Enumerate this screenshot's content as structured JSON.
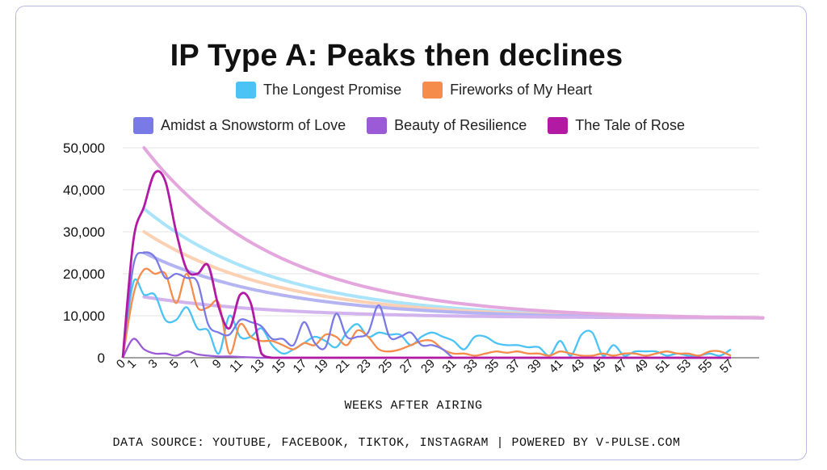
{
  "chart_data": {
    "type": "line",
    "title": "IP Type A: Peaks then declines",
    "xlabel": "WEEKS AFTER AIRING",
    "ylabel": "",
    "ylim": [
      0,
      50000
    ],
    "yticks": [
      "0",
      "10,000",
      "20,000",
      "30,000",
      "40,000",
      "50,000"
    ],
    "xlim": [
      0,
      57
    ],
    "x_tick_labels": [
      "0",
      "1",
      "3",
      "5",
      "7",
      "9",
      "11",
      "13",
      "15",
      "17",
      "19",
      "21",
      "23",
      "25",
      "27",
      "29",
      "31",
      "33",
      "35",
      "37",
      "39",
      "41",
      "43",
      "45",
      "47",
      "49",
      "51",
      "53",
      "55",
      "57"
    ],
    "series": [
      {
        "name": "The Longest Promise",
        "color": "#4cc3f5",
        "points": [
          [
            0,
            0
          ],
          [
            1,
            18000
          ],
          [
            2,
            15000
          ],
          [
            3,
            15000
          ],
          [
            4,
            9000
          ],
          [
            5,
            9000
          ],
          [
            6,
            12000
          ],
          [
            7,
            7000
          ],
          [
            8,
            6500
          ],
          [
            9,
            1000
          ],
          [
            10,
            10000
          ],
          [
            11,
            5000
          ],
          [
            12,
            5000
          ],
          [
            13,
            7000
          ],
          [
            14,
            3000
          ],
          [
            15,
            1000
          ],
          [
            16,
            2000
          ],
          [
            17,
            3500
          ],
          [
            18,
            5000
          ],
          [
            19,
            4000
          ],
          [
            20,
            2500
          ],
          [
            21,
            6000
          ],
          [
            22,
            8000
          ],
          [
            23,
            5000
          ],
          [
            24,
            6000
          ],
          [
            25,
            5500
          ],
          [
            26,
            5500
          ],
          [
            27,
            3000
          ],
          [
            28,
            5000
          ],
          [
            29,
            6000
          ],
          [
            30,
            5000
          ],
          [
            31,
            4000
          ],
          [
            32,
            2000
          ],
          [
            33,
            5000
          ],
          [
            34,
            5000
          ],
          [
            35,
            3500
          ],
          [
            36,
            3000
          ],
          [
            37,
            3000
          ],
          [
            38,
            2500
          ],
          [
            39,
            2500
          ],
          [
            40,
            500
          ],
          [
            41,
            4000
          ],
          [
            42,
            500
          ],
          [
            43,
            5500
          ],
          [
            44,
            6000
          ],
          [
            45,
            500
          ],
          [
            46,
            3000
          ],
          [
            47,
            500
          ],
          [
            48,
            1500
          ],
          [
            49,
            1500
          ],
          [
            50,
            1500
          ],
          [
            51,
            500
          ],
          [
            52,
            1000
          ],
          [
            53,
            500
          ],
          [
            54,
            500
          ],
          [
            55,
            1000
          ],
          [
            56,
            500
          ],
          [
            57,
            2000
          ]
        ]
      },
      {
        "name": "Fireworks of My Heart",
        "color": "#f58c4c",
        "points": [
          [
            0,
            0
          ],
          [
            1,
            15000
          ],
          [
            2,
            21000
          ],
          [
            3,
            20000
          ],
          [
            4,
            20000
          ],
          [
            5,
            13000
          ],
          [
            6,
            20000
          ],
          [
            7,
            12000
          ],
          [
            8,
            12000
          ],
          [
            9,
            13000
          ],
          [
            10,
            1000
          ],
          [
            11,
            8000
          ],
          [
            12,
            5000
          ],
          [
            13,
            4000
          ],
          [
            14,
            4000
          ],
          [
            15,
            3000
          ],
          [
            16,
            2000
          ],
          [
            17,
            3500
          ],
          [
            18,
            3000
          ],
          [
            19,
            5500
          ],
          [
            20,
            5000
          ],
          [
            21,
            3000
          ],
          [
            22,
            6500
          ],
          [
            23,
            5000
          ],
          [
            24,
            2000
          ],
          [
            25,
            1500
          ],
          [
            26,
            2000
          ],
          [
            27,
            3000
          ],
          [
            28,
            4000
          ],
          [
            29,
            4000
          ],
          [
            30,
            2000
          ],
          [
            31,
            1000
          ],
          [
            32,
            1000
          ],
          [
            33,
            500
          ],
          [
            34,
            1000
          ],
          [
            35,
            1500
          ],
          [
            36,
            1200
          ],
          [
            37,
            1500
          ],
          [
            38,
            1000
          ],
          [
            39,
            1000
          ],
          [
            40,
            500
          ],
          [
            41,
            1500
          ],
          [
            42,
            1000
          ],
          [
            43,
            500
          ],
          [
            44,
            500
          ],
          [
            45,
            1000
          ],
          [
            46,
            500
          ],
          [
            47,
            1000
          ],
          [
            48,
            1000
          ],
          [
            49,
            500
          ],
          [
            50,
            1000
          ],
          [
            51,
            1500
          ],
          [
            52,
            1000
          ],
          [
            53,
            1000
          ],
          [
            54,
            500
          ],
          [
            55,
            1500
          ],
          [
            56,
            1500
          ],
          [
            57,
            500
          ]
        ]
      },
      {
        "name": "Amidst a Snowstorm of Love",
        "color": "#7a7ae6",
        "points": [
          [
            0,
            0
          ],
          [
            1,
            22000
          ],
          [
            2,
            25000
          ],
          [
            3,
            24000
          ],
          [
            4,
            19000
          ],
          [
            5,
            20000
          ],
          [
            6,
            19000
          ],
          [
            7,
            18000
          ],
          [
            8,
            8000
          ],
          [
            9,
            6000
          ],
          [
            10,
            5500
          ],
          [
            11,
            9000
          ],
          [
            12,
            8500
          ],
          [
            13,
            7500
          ],
          [
            14,
            4500
          ],
          [
            15,
            4500
          ],
          [
            16,
            3000
          ],
          [
            17,
            8500
          ],
          [
            18,
            3500
          ],
          [
            19,
            2500
          ],
          [
            20,
            10500
          ],
          [
            21,
            5000
          ],
          [
            22,
            5000
          ],
          [
            23,
            6000
          ],
          [
            24,
            12500
          ],
          [
            25,
            5000
          ],
          [
            26,
            5000
          ],
          [
            27,
            6000
          ],
          [
            28,
            3000
          ],
          [
            29,
            3000
          ],
          [
            30,
            2000
          ],
          [
            31,
            0
          ],
          [
            32,
            0
          ],
          [
            33,
            0
          ],
          [
            34,
            0
          ],
          [
            35,
            0
          ],
          [
            36,
            0
          ],
          [
            37,
            0
          ],
          [
            38,
            0
          ],
          [
            39,
            0
          ],
          [
            40,
            0
          ],
          [
            41,
            0
          ],
          [
            42,
            0
          ],
          [
            43,
            0
          ],
          [
            44,
            0
          ],
          [
            45,
            0
          ],
          [
            46,
            0
          ],
          [
            47,
            0
          ],
          [
            48,
            0
          ],
          [
            49,
            0
          ],
          [
            50,
            0
          ],
          [
            51,
            0
          ],
          [
            52,
            0
          ],
          [
            53,
            0
          ],
          [
            54,
            0
          ],
          [
            55,
            0
          ],
          [
            56,
            0
          ],
          [
            57,
            0
          ]
        ]
      },
      {
        "name": "Beauty of Resilience",
        "color": "#9b5bd6",
        "points": [
          [
            0,
            0
          ],
          [
            1,
            4500
          ],
          [
            2,
            2000
          ],
          [
            3,
            1000
          ],
          [
            4,
            1000
          ],
          [
            5,
            500
          ],
          [
            6,
            1500
          ],
          [
            7,
            800
          ],
          [
            8,
            500
          ],
          [
            9,
            300
          ],
          [
            10,
            300
          ],
          [
            11,
            200
          ],
          [
            12,
            100
          ],
          [
            13,
            0
          ],
          [
            14,
            0
          ],
          [
            15,
            0
          ],
          [
            16,
            0
          ],
          [
            17,
            0
          ],
          [
            18,
            0
          ],
          [
            19,
            0
          ],
          [
            20,
            0
          ],
          [
            21,
            0
          ],
          [
            22,
            0
          ],
          [
            23,
            0
          ],
          [
            24,
            0
          ],
          [
            25,
            0
          ],
          [
            26,
            0
          ],
          [
            27,
            0
          ],
          [
            28,
            0
          ],
          [
            29,
            0
          ],
          [
            30,
            0
          ],
          [
            31,
            0
          ],
          [
            32,
            0
          ],
          [
            33,
            0
          ],
          [
            34,
            0
          ],
          [
            35,
            0
          ],
          [
            36,
            0
          ],
          [
            37,
            0
          ],
          [
            38,
            0
          ],
          [
            39,
            0
          ],
          [
            40,
            0
          ],
          [
            41,
            0
          ],
          [
            42,
            0
          ],
          [
            43,
            0
          ],
          [
            44,
            0
          ],
          [
            45,
            0
          ],
          [
            46,
            0
          ],
          [
            47,
            0
          ],
          [
            48,
            0
          ],
          [
            49,
            0
          ],
          [
            50,
            0
          ],
          [
            51,
            0
          ],
          [
            52,
            0
          ],
          [
            53,
            0
          ],
          [
            54,
            0
          ],
          [
            55,
            0
          ],
          [
            56,
            0
          ],
          [
            57,
            0
          ]
        ]
      },
      {
        "name": "The Tale of Rose",
        "color": "#b21aa3",
        "points": [
          [
            0,
            0
          ],
          [
            1,
            28000
          ],
          [
            2,
            36000
          ],
          [
            3,
            44000
          ],
          [
            4,
            42000
          ],
          [
            5,
            30000
          ],
          [
            6,
            21000
          ],
          [
            7,
            20000
          ],
          [
            8,
            22000
          ],
          [
            9,
            12000
          ],
          [
            10,
            7000
          ],
          [
            11,
            15000
          ],
          [
            12,
            13000
          ],
          [
            13,
            1000
          ],
          [
            14,
            0
          ],
          [
            15,
            0
          ],
          [
            16,
            0
          ],
          [
            17,
            0
          ],
          [
            18,
            0
          ],
          [
            19,
            0
          ],
          [
            20,
            0
          ],
          [
            21,
            0
          ],
          [
            22,
            0
          ],
          [
            23,
            0
          ],
          [
            24,
            0
          ],
          [
            25,
            0
          ],
          [
            26,
            0
          ],
          [
            27,
            0
          ],
          [
            28,
            0
          ],
          [
            29,
            0
          ],
          [
            30,
            0
          ],
          [
            31,
            0
          ],
          [
            32,
            0
          ],
          [
            33,
            0
          ],
          [
            34,
            0
          ],
          [
            35,
            0
          ],
          [
            36,
            0
          ],
          [
            37,
            0
          ],
          [
            38,
            0
          ],
          [
            39,
            0
          ],
          [
            40,
            0
          ],
          [
            41,
            0
          ],
          [
            42,
            0
          ],
          [
            43,
            0
          ],
          [
            44,
            0
          ],
          [
            45,
            0
          ],
          [
            46,
            0
          ],
          [
            47,
            0
          ],
          [
            48,
            0
          ],
          [
            49,
            0
          ],
          [
            50,
            0
          ],
          [
            51,
            0
          ],
          [
            52,
            0
          ],
          [
            53,
            0
          ],
          [
            54,
            0
          ],
          [
            55,
            0
          ],
          [
            56,
            0
          ],
          [
            57,
            0
          ]
        ]
      }
    ],
    "trendlines": [
      {
        "series": "The Longest Promise",
        "color": "#a9e4fb",
        "start_x": 2,
        "start_y": 35500,
        "end_x": 60,
        "end_y": 9500
      },
      {
        "series": "Fireworks of My Heart",
        "color": "#fbd0b3",
        "start_x": 2,
        "start_y": 30000,
        "end_x": 60,
        "end_y": 9500
      },
      {
        "series": "Amidst a Snowstorm of Love",
        "color": "#b4b4f2",
        "start_x": 2,
        "start_y": 25000,
        "end_x": 60,
        "end_y": 9500
      },
      {
        "series": "Beauty of Resilience",
        "color": "#d2b3ee",
        "start_x": 2,
        "start_y": 14500,
        "end_x": 60,
        "end_y": 9500
      },
      {
        "series": "The Tale of Rose",
        "color": "#e3a7dd",
        "start_x": 2,
        "start_y": 50000,
        "end_x": 60,
        "end_y": 9500
      }
    ],
    "footer": "DATA SOURCE: YOUTUBE, FACEBOOK, TIKTOK, INSTAGRAM | POWERED BY V-PULSE.COM"
  }
}
